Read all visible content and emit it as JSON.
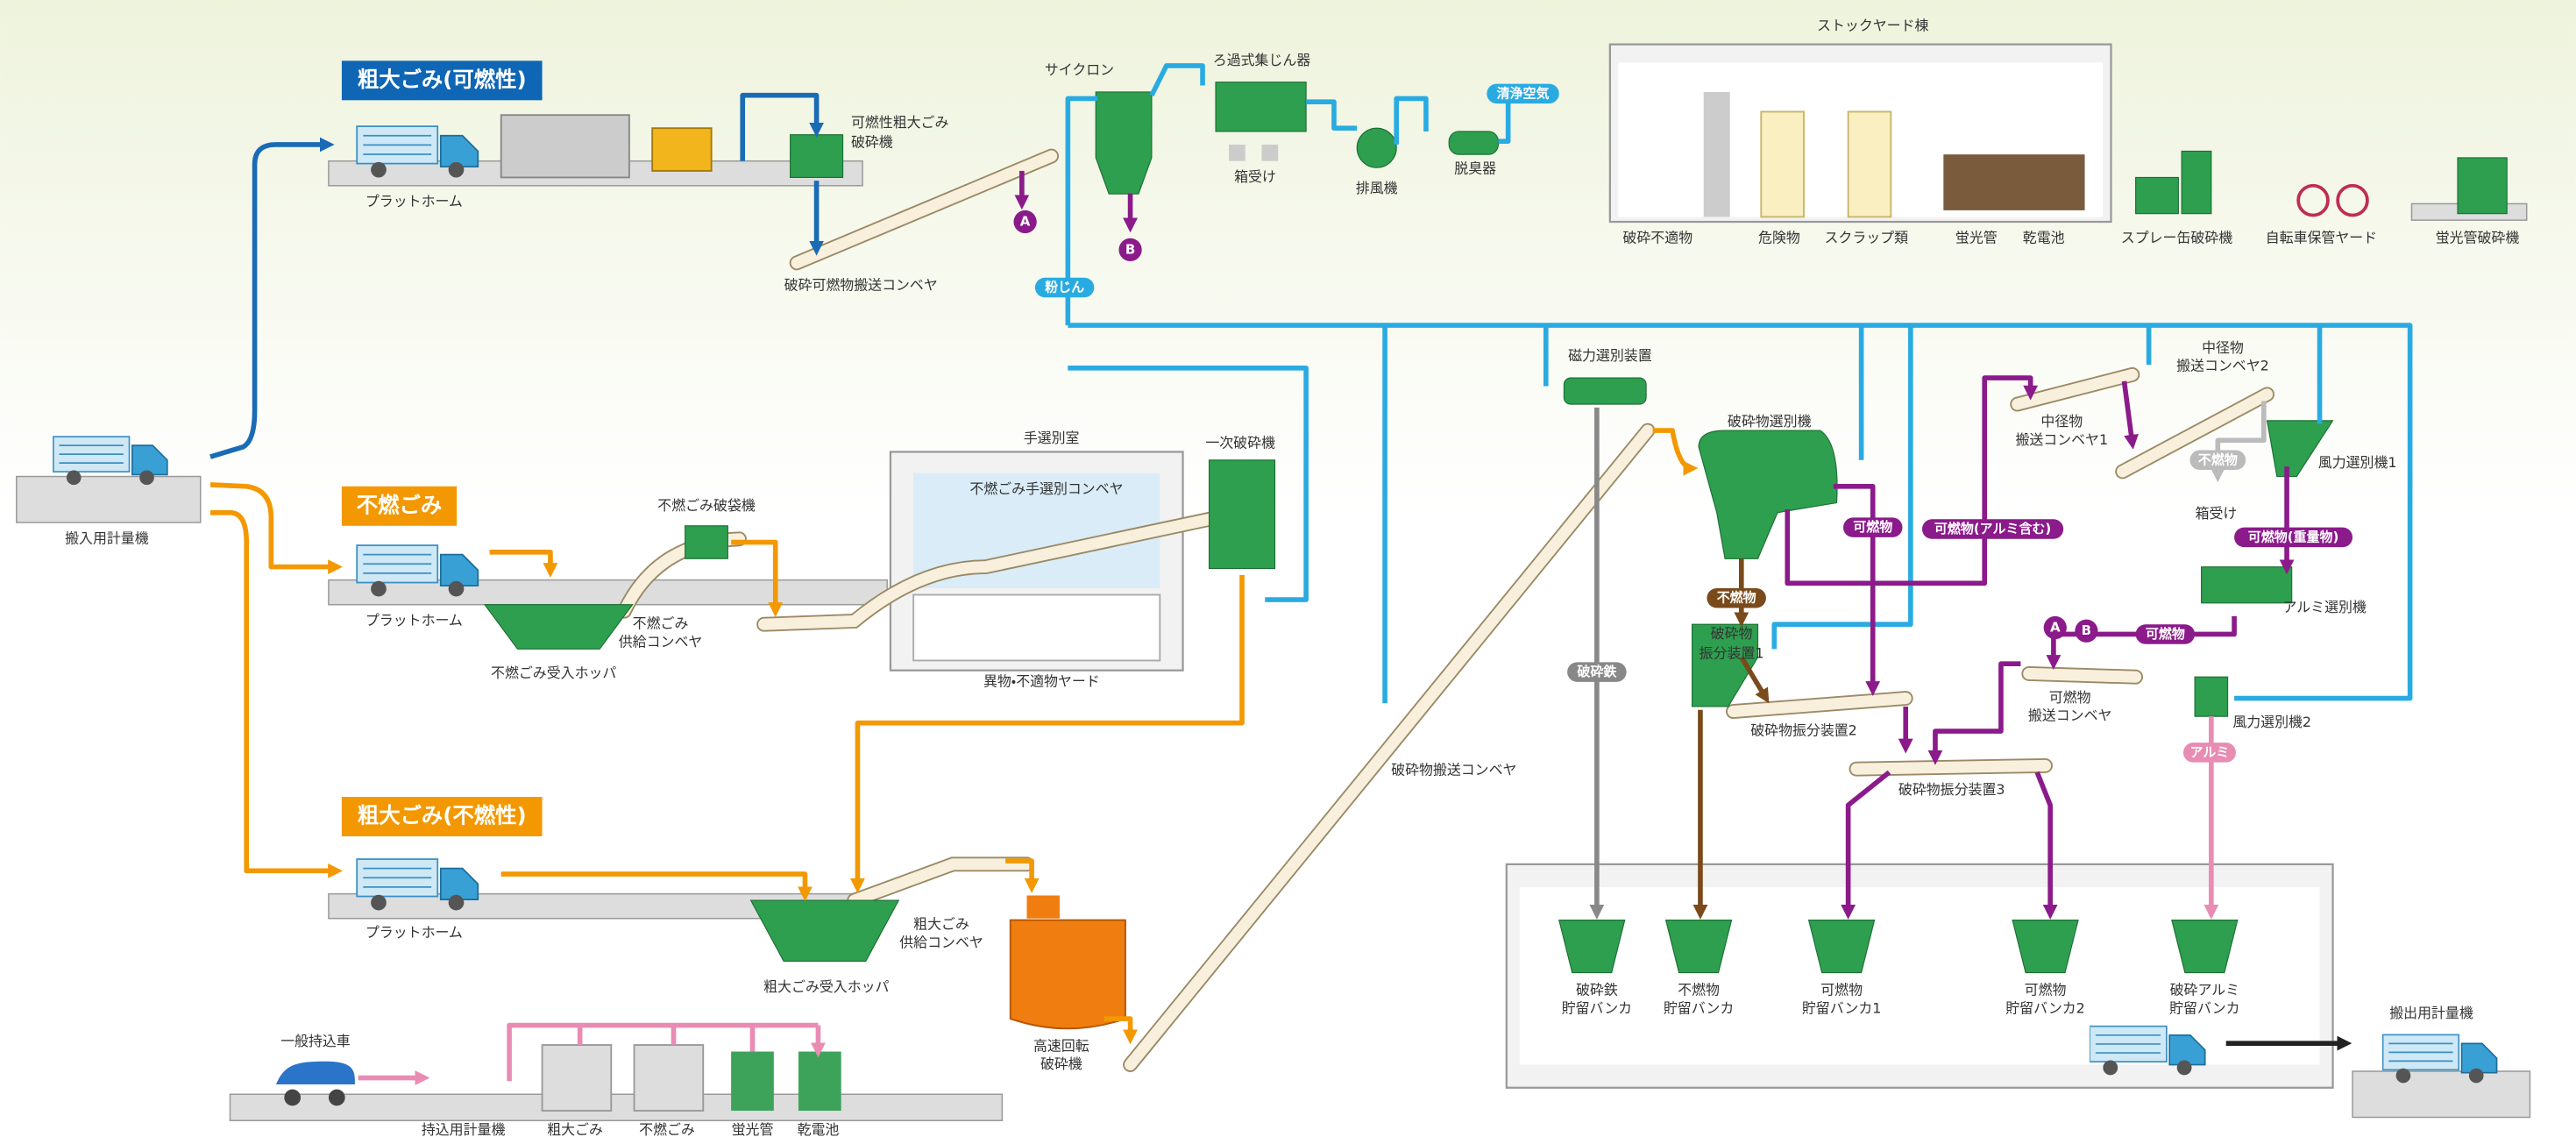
{
  "sections": {
    "combustible_bulky": "粗大ごみ(可燃性)",
    "incombustible": "不燃ごみ",
    "incombustible_bulky": "粗大ごみ(不燃性)"
  },
  "tags": {
    "clean_air": "清浄空気",
    "dust": "粉じん",
    "combustible_1": "可燃物",
    "combustible_al": "可燃物(アルミ含む)",
    "combustible_heavy": "可燃物(重量物)",
    "incombustible": "不燃物",
    "combustible_2": "可燃物",
    "iron": "破砕鉄",
    "aluminum": "アルミ",
    "reject": "不燃物"
  },
  "markers": {
    "a1": "A",
    "b1": "B",
    "a2": "A",
    "b2": "B"
  },
  "labels": {
    "scale_in": "搬入用計量機",
    "platform_1": "プラットホーム",
    "platform_2": "プラットホーム",
    "platform_3": "プラットホーム",
    "bulky_crusher": [
      "可燃性粗大ごみ",
      "破砕機"
    ],
    "crushed_conveyor": "破砕可燃物搬送コンベヤ",
    "cyclone": "サイクロン",
    "bag_filter": "ろ過式集じん器",
    "box_1": "箱受け",
    "fan": "排風機",
    "deodorizer": "脱臭器",
    "stockyard": "ストックヤード棟",
    "unsuitable": "破砕不適物",
    "hazardous": "危険物",
    "scrap": "スクラップ類",
    "fluorescent": "蛍光管",
    "battery": "乾電池",
    "spray_crusher": "スプレー缶破砕機",
    "bicycle": "自転車保管ヤード",
    "fluorescent_crusher": "蛍光管破砕機",
    "sorting_room": "手選別室",
    "sorting_conveyor": "不燃ごみ手選別コンベヤ",
    "primary_crusher": "一次破砕機",
    "bag_breaker": "不燃ごみ破袋機",
    "feed_conveyor": [
      "不燃ごみ",
      "供給コンベヤ"
    ],
    "hopper": "不燃ごみ受入ホッパ",
    "foreign_yard": "異物・不適物ヤード",
    "magnetic": "磁力選別装置",
    "separator": "破砕物選別機",
    "mid_conveyor_1": [
      "中径物",
      "搬送コンベヤ1"
    ],
    "mid_conveyor_2": [
      "中径物",
      "搬送コンベヤ2"
    ],
    "box_2": "箱受け",
    "air_sep_1": "風力選別機1",
    "distributor_1": [
      "破砕物",
      "振分装置1"
    ],
    "al_sep": "アルミ選別機",
    "comb_conveyor": [
      "可燃物",
      "搬送コンベヤ"
    ],
    "air_sep_2": "風力選別機2",
    "distributor_2": "破砕物振分装置2",
    "distributor_3": "破砕物振分装置3",
    "crushed_transport": "破砕物搬送コンベヤ",
    "bulky_hopper": "粗大ごみ受入ホッパ",
    "bulky_feed": [
      "粗大ごみ",
      "供給コンベヤ"
    ],
    "high_speed": [
      "高速回転",
      "破砕機"
    ],
    "general_car": "一般持込車",
    "scale_carry": "持込用計量機",
    "bin_bulky": "粗大ごみ",
    "bin_incomb": "不燃ごみ",
    "bin_fluor": "蛍光管",
    "bin_batt": "乾電池",
    "bunker_iron": [
      "破砕鉄",
      "貯留バンカ"
    ],
    "bunker_incomb": [
      "不燃物",
      "貯留バンカ"
    ],
    "bunker_comb1": [
      "可燃物",
      "貯留バンカ1"
    ],
    "bunker_comb2": [
      "可燃物",
      "貯留バンカ2"
    ],
    "bunker_al": [
      "破砕アルミ",
      "貯留バンカ"
    ],
    "scale_out": "搬出用計量機"
  }
}
